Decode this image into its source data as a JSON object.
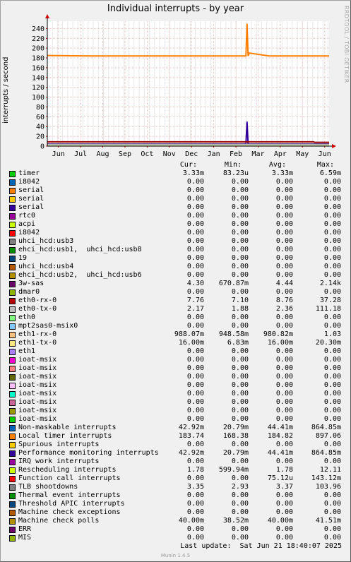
{
  "page": {
    "title": "Individual interrupts - by year",
    "side_text": "RRDTOOL / TOBI OETIKER",
    "last_update": "Last update:  Sat Jun 21 18:40:07 2025",
    "version": "Munin 1.4.5"
  },
  "chart_data": {
    "type": "line",
    "title": "Individual interrupts - by year",
    "xlabel": "",
    "ylabel": "interrupts / second",
    "x_ticks": [
      "Jun",
      "Jul",
      "Aug",
      "Sep",
      "Oct",
      "Nov",
      "Dec",
      "Jan",
      "Feb",
      "Mar",
      "Apr",
      "May",
      "Jun"
    ],
    "x_tick_positions": [
      0.5,
      1.5,
      2.5,
      3.5,
      4.5,
      5.5,
      6.5,
      7.5,
      8.5,
      9.5,
      10.5,
      11.5,
      12.5
    ],
    "xlim": [
      0,
      12.7
    ],
    "y_ticks": [
      0,
      20,
      40,
      60,
      80,
      100,
      120,
      140,
      160,
      180,
      200,
      220,
      240
    ],
    "ylim": [
      0,
      255
    ],
    "grid": true,
    "series": [
      {
        "name": "Local timer interrupts",
        "color": "#ff8000",
        "x": [
          0,
          2,
          4,
          6,
          8,
          8.95,
          9.0,
          9.05,
          9.1,
          10,
          12,
          12.7
        ],
        "y": [
          185,
          184,
          184,
          184,
          184,
          184,
          250,
          184,
          190,
          184,
          184,
          184
        ]
      },
      {
        "name": "3w-sas",
        "color": "#330099",
        "x": [
          0,
          8.95,
          9.0,
          9.05,
          12.7
        ],
        "y": [
          4.3,
          4.3,
          50,
          4.3,
          4.3
        ]
      },
      {
        "name": "eth0-rx-0",
        "color": "#990000",
        "x": [
          0,
          9.5,
          12.0,
          12.05,
          12.7
        ],
        "y": [
          8.8,
          8.8,
          8.8,
          7.8,
          7.8
        ]
      },
      {
        "name": "Rescheduling interrupts",
        "color": "#ccff00",
        "x": [
          0,
          12.7
        ],
        "y": [
          1.8,
          1.8
        ]
      },
      {
        "name": "TLB shootdowns",
        "color": "#808080",
        "x": [
          0,
          12.7
        ],
        "y": [
          3.4,
          3.4
        ]
      },
      {
        "name": "eth0-tx-0",
        "color": "#c0c0c0",
        "x": [
          0,
          12.7
        ],
        "y": [
          2.4,
          2.4
        ]
      }
    ]
  },
  "legend": {
    "headers": {
      "cur": "Cur:",
      "min": "Min:",
      "avg": "Avg:",
      "max": "Max:"
    },
    "rows": [
      {
        "name": "timer",
        "color": "#00cc00",
        "cur": "3.33m",
        "min": "83.23u",
        "avg": "3.33m",
        "max": "6.59m"
      },
      {
        "name": "i8042",
        "color": "#0066b3",
        "cur": "0.00",
        "min": "0.00",
        "avg": "0.00",
        "max": "0.00"
      },
      {
        "name": "serial",
        "color": "#ff8000",
        "cur": "0.00",
        "min": "0.00",
        "avg": "0.00",
        "max": "0.00"
      },
      {
        "name": "serial",
        "color": "#ffcc00",
        "cur": "0.00",
        "min": "0.00",
        "avg": "0.00",
        "max": "0.00"
      },
      {
        "name": "serial",
        "color": "#330099",
        "cur": "0.00",
        "min": "0.00",
        "avg": "0.00",
        "max": "0.00"
      },
      {
        "name": "rtc0",
        "color": "#990099",
        "cur": "0.00",
        "min": "0.00",
        "avg": "0.00",
        "max": "0.00"
      },
      {
        "name": "acpi",
        "color": "#ccff00",
        "cur": "0.00",
        "min": "0.00",
        "avg": "0.00",
        "max": "0.00"
      },
      {
        "name": "i8042",
        "color": "#ff0000",
        "cur": "0.00",
        "min": "0.00",
        "avg": "0.00",
        "max": "0.00"
      },
      {
        "name": "uhci_hcd:usb3",
        "color": "#808080",
        "cur": "0.00",
        "min": "0.00",
        "avg": "0.00",
        "max": "0.00"
      },
      {
        "name": "ehci_hcd:usb1,  uhci_hcd:usb8",
        "color": "#008f00",
        "cur": "0.00",
        "min": "0.00",
        "avg": "0.00",
        "max": "0.00"
      },
      {
        "name": "19",
        "color": "#00487d",
        "cur": "0.00",
        "min": "0.00",
        "avg": "0.00",
        "max": "0.00"
      },
      {
        "name": "uhci_hcd:usb4",
        "color": "#b35a00",
        "cur": "0.00",
        "min": "0.00",
        "avg": "0.00",
        "max": "0.00"
      },
      {
        "name": "ehci_hcd:usb2,  uhci_hcd:usb6",
        "color": "#b38f00",
        "cur": "0.00",
        "min": "0.00",
        "avg": "0.00",
        "max": "0.00"
      },
      {
        "name": "3w-sas",
        "color": "#6b006b",
        "cur": "4.30",
        "min": "670.87m",
        "avg": "4.44",
        "max": "2.14k"
      },
      {
        "name": "dmar0",
        "color": "#8fb300",
        "cur": "0.00",
        "min": "0.00",
        "avg": "0.00",
        "max": "0.00"
      },
      {
        "name": "eth0-rx-0",
        "color": "#b30000",
        "cur": "7.76",
        "min": "7.10",
        "avg": "8.76",
        "max": "37.28"
      },
      {
        "name": "eth0-tx-0",
        "color": "#bebebe",
        "cur": "2.17",
        "min": "1.88",
        "avg": "2.36",
        "max": "111.18"
      },
      {
        "name": "eth0",
        "color": "#80ff80",
        "cur": "0.00",
        "min": "0.00",
        "avg": "0.00",
        "max": "0.00"
      },
      {
        "name": "mpt2sas0-msix0",
        "color": "#80c9ff",
        "cur": "0.00",
        "min": "0.00",
        "avg": "0.00",
        "max": "0.00"
      },
      {
        "name": "eth1-rx-0",
        "color": "#ffc080",
        "cur": "988.07m",
        "min": "948.58m",
        "avg": "980.82m",
        "max": "1.03"
      },
      {
        "name": "eth1-tx-0",
        "color": "#ffe680",
        "cur": "16.00m",
        "min": "6.83m",
        "avg": "16.00m",
        "max": "20.30m"
      },
      {
        "name": "eth1",
        "color": "#aa80ff",
        "cur": "0.00",
        "min": "0.00",
        "avg": "0.00",
        "max": "0.00"
      },
      {
        "name": "ioat-msix",
        "color": "#ee00cc",
        "cur": "0.00",
        "min": "0.00",
        "avg": "0.00",
        "max": "0.00"
      },
      {
        "name": "ioat-msix",
        "color": "#ff8080",
        "cur": "0.00",
        "min": "0.00",
        "avg": "0.00",
        "max": "0.00"
      },
      {
        "name": "ioat-msix",
        "color": "#666600",
        "cur": "0.00",
        "min": "0.00",
        "avg": "0.00",
        "max": "0.00"
      },
      {
        "name": "ioat-msix",
        "color": "#ffbfff",
        "cur": "0.00",
        "min": "0.00",
        "avg": "0.00",
        "max": "0.00"
      },
      {
        "name": "ioat-msix",
        "color": "#00ffcc",
        "cur": "0.00",
        "min": "0.00",
        "avg": "0.00",
        "max": "0.00"
      },
      {
        "name": "ioat-msix",
        "color": "#cc6699",
        "cur": "0.00",
        "min": "0.00",
        "avg": "0.00",
        "max": "0.00"
      },
      {
        "name": "ioat-msix",
        "color": "#999900",
        "cur": "0.00",
        "min": "0.00",
        "avg": "0.00",
        "max": "0.00"
      },
      {
        "name": "ioat-msix",
        "color": "#00cc00",
        "cur": "0.00",
        "min": "0.00",
        "avg": "0.00",
        "max": "0.00"
      },
      {
        "name": "Non-maskable interrupts",
        "color": "#0066b3",
        "cur": "42.92m",
        "min": "20.79m",
        "avg": "44.41m",
        "max": "864.85m"
      },
      {
        "name": "Local timer interrupts",
        "color": "#ff8000",
        "cur": "183.74",
        "min": "168.38",
        "avg": "184.82",
        "max": "897.06"
      },
      {
        "name": "Spurious interrupts",
        "color": "#ffcc00",
        "cur": "0.00",
        "min": "0.00",
        "avg": "0.00",
        "max": "0.00"
      },
      {
        "name": "Performance monitoring interrupts",
        "color": "#330099",
        "cur": "42.92m",
        "min": "20.79m",
        "avg": "44.41m",
        "max": "864.85m"
      },
      {
        "name": "IRQ work interrupts",
        "color": "#990099",
        "cur": "0.00",
        "min": "0.00",
        "avg": "0.00",
        "max": "0.00"
      },
      {
        "name": "Rescheduling interrupts",
        "color": "#ccff00",
        "cur": "1.78",
        "min": "599.94m",
        "avg": "1.78",
        "max": "12.11"
      },
      {
        "name": "Function call interrupts",
        "color": "#ff0000",
        "cur": "0.00",
        "min": "0.00",
        "avg": "75.12u",
        "max": "143.12m"
      },
      {
        "name": "TLB shootdowns",
        "color": "#808080",
        "cur": "3.35",
        "min": "2.93",
        "avg": "3.37",
        "max": "103.96"
      },
      {
        "name": "Thermal event interrupts",
        "color": "#008f00",
        "cur": "0.00",
        "min": "0.00",
        "avg": "0.00",
        "max": "0.00"
      },
      {
        "name": "Threshold APIC interrupts",
        "color": "#00487d",
        "cur": "0.00",
        "min": "0.00",
        "avg": "0.00",
        "max": "0.00"
      },
      {
        "name": "Machine check exceptions",
        "color": "#b35a00",
        "cur": "0.00",
        "min": "0.00",
        "avg": "0.00",
        "max": "0.00"
      },
      {
        "name": "Machine check polls",
        "color": "#b38f00",
        "cur": "40.00m",
        "min": "38.52m",
        "avg": "40.00m",
        "max": "41.51m"
      },
      {
        "name": "ERR",
        "color": "#6b006b",
        "cur": "0.00",
        "min": "0.00",
        "avg": "0.00",
        "max": "0.00"
      },
      {
        "name": "MIS",
        "color": "#8fb300",
        "cur": "0.00",
        "min": "0.00",
        "avg": "0.00",
        "max": "0.00"
      }
    ]
  }
}
